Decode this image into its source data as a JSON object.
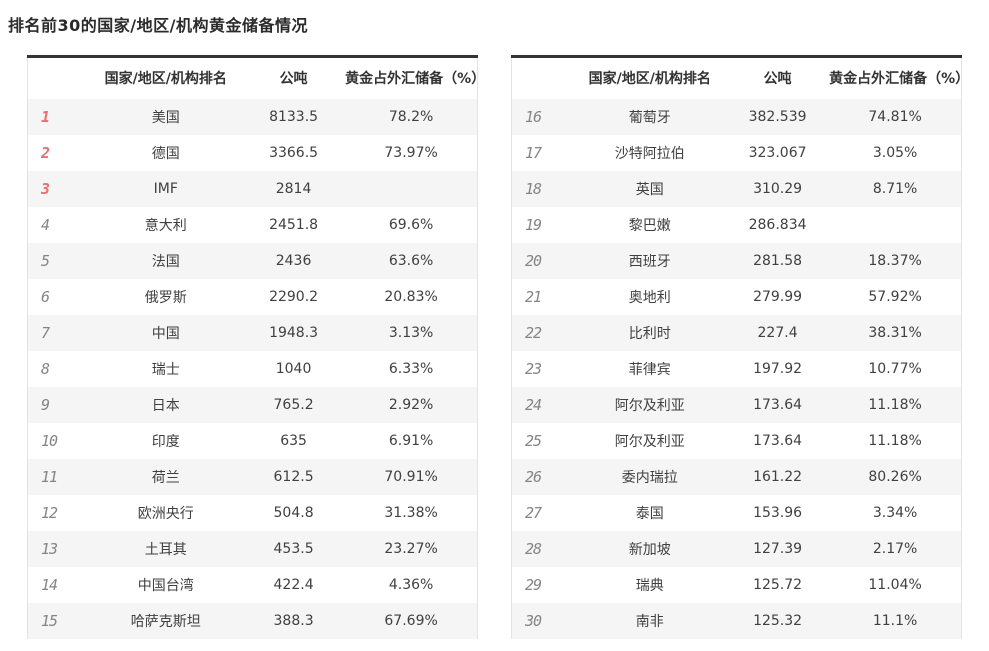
{
  "title": "排名前30的国家/地区/机构黄金储备情况",
  "colors": {
    "accent_red_rank": "#ef6c6c",
    "rank_gray": "#858585",
    "zebra_row": "#f5f5f5",
    "table_top_border": "#333333",
    "table_side_border": "#e3e3e3",
    "text": "#404040"
  },
  "chart_data": {
    "type": "table",
    "title": "排名前30的国家/地区/机构黄金储备情况",
    "columns": {
      "rank": "",
      "name": "国家/地区/机构排名",
      "tons": "公吨",
      "pct": "黄金占外汇储备（%）"
    },
    "highlight_ranks": [
      1,
      2,
      3
    ],
    "tables": [
      {
        "rows": [
          {
            "rank": "1",
            "name": "美国",
            "tons": "8133.5",
            "pct": "78.2%"
          },
          {
            "rank": "2",
            "name": "德国",
            "tons": "3366.5",
            "pct": "73.97%"
          },
          {
            "rank": "3",
            "name": "IMF",
            "tons": "2814",
            "pct": ""
          },
          {
            "rank": "4",
            "name": "意大利",
            "tons": "2451.8",
            "pct": "69.6%"
          },
          {
            "rank": "5",
            "name": "法国",
            "tons": "2436",
            "pct": "63.6%"
          },
          {
            "rank": "6",
            "name": "俄罗斯",
            "tons": "2290.2",
            "pct": "20.83%"
          },
          {
            "rank": "7",
            "name": "中国",
            "tons": "1948.3",
            "pct": "3.13%"
          },
          {
            "rank": "8",
            "name": "瑞士",
            "tons": "1040",
            "pct": "6.33%"
          },
          {
            "rank": "9",
            "name": "日本",
            "tons": "765.2",
            "pct": "2.92%"
          },
          {
            "rank": "10",
            "name": "印度",
            "tons": "635",
            "pct": "6.91%"
          },
          {
            "rank": "11",
            "name": "荷兰",
            "tons": "612.5",
            "pct": "70.91%"
          },
          {
            "rank": "12",
            "name": "欧洲央行",
            "tons": "504.8",
            "pct": "31.38%"
          },
          {
            "rank": "13",
            "name": "土耳其",
            "tons": "453.5",
            "pct": "23.27%"
          },
          {
            "rank": "14",
            "name": "中国台湾",
            "tons": "422.4",
            "pct": "4.36%"
          },
          {
            "rank": "15",
            "name": "哈萨克斯坦",
            "tons": "388.3",
            "pct": "67.69%"
          }
        ]
      },
      {
        "rows": [
          {
            "rank": "16",
            "name": "葡萄牙",
            "tons": "382.539",
            "pct": "74.81%"
          },
          {
            "rank": "17",
            "name": "沙特阿拉伯",
            "tons": "323.067",
            "pct": "3.05%"
          },
          {
            "rank": "18",
            "name": "英国",
            "tons": "310.29",
            "pct": "8.71%"
          },
          {
            "rank": "19",
            "name": "黎巴嫩",
            "tons": "286.834",
            "pct": ""
          },
          {
            "rank": "20",
            "name": "西班牙",
            "tons": "281.58",
            "pct": "18.37%"
          },
          {
            "rank": "21",
            "name": "奥地利",
            "tons": "279.99",
            "pct": "57.92%"
          },
          {
            "rank": "22",
            "name": "比利时",
            "tons": "227.4",
            "pct": "38.31%"
          },
          {
            "rank": "23",
            "name": "菲律宾",
            "tons": "197.92",
            "pct": "10.77%"
          },
          {
            "rank": "24",
            "name": "阿尔及利亚",
            "tons": "173.64",
            "pct": "11.18%"
          },
          {
            "rank": "25",
            "name": "阿尔及利亚",
            "tons": "173.64",
            "pct": "11.18%"
          },
          {
            "rank": "26",
            "name": "委内瑞拉",
            "tons": "161.22",
            "pct": "80.26%"
          },
          {
            "rank": "27",
            "name": "泰国",
            "tons": "153.96",
            "pct": "3.34%"
          },
          {
            "rank": "28",
            "name": "新加坡",
            "tons": "127.39",
            "pct": "2.17%"
          },
          {
            "rank": "29",
            "name": "瑞典",
            "tons": "125.72",
            "pct": "11.04%"
          },
          {
            "rank": "30",
            "name": "南非",
            "tons": "125.32",
            "pct": "11.1%"
          }
        ]
      }
    ]
  }
}
